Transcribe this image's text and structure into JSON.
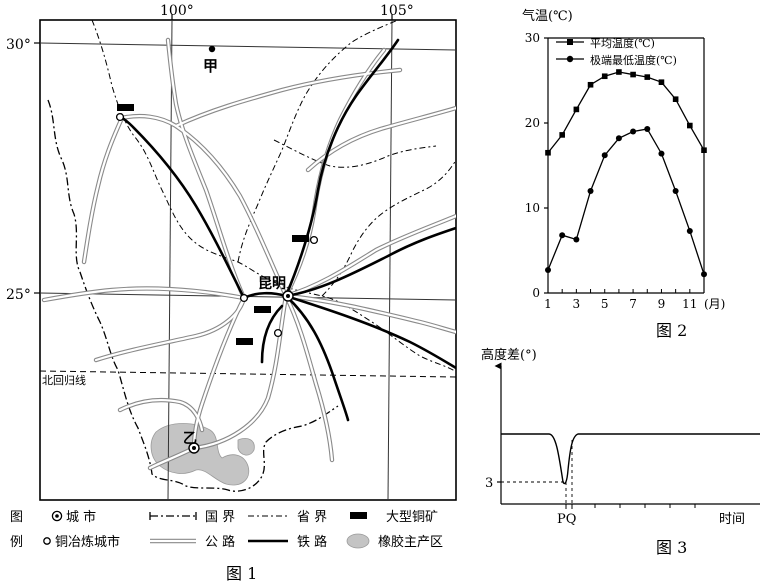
{
  "fig1": {
    "caption": "图 1",
    "lon_labels": [
      "100°",
      "105°"
    ],
    "lat_labels": [
      "30°",
      "25°"
    ],
    "tropic_label": "北回归线",
    "cities": {
      "jia": "甲",
      "kunming": "昆明",
      "yi": "乙"
    },
    "legend": {
      "row_label_1": "图",
      "row_label_2": "例",
      "city": "城 市",
      "copper_city": "铜冶炼城市",
      "national_border": "国 界",
      "provincial_border": "省 界",
      "road": "公 路",
      "railway": "铁 路",
      "copper_mine": "大型铜矿",
      "rubber_area": "橡胶主产区"
    }
  },
  "fig2": {
    "caption": "图 2",
    "ylabel": "气温(℃)",
    "xunit": "(月)",
    "chart_data": {
      "type": "line",
      "x": [
        1,
        2,
        3,
        4,
        5,
        6,
        7,
        8,
        9,
        10,
        11,
        12
      ],
      "xticks": [
        "1",
        "3",
        "5",
        "7",
        "9",
        "11"
      ],
      "yticks": [
        "0",
        "10",
        "20",
        "30"
      ],
      "ylim": [
        0,
        30
      ],
      "series": [
        {
          "name": "平均温度(℃)",
          "marker": "square",
          "values": [
            16.5,
            18.6,
            21.6,
            24.5,
            25.5,
            26.0,
            25.7,
            25.4,
            24.8,
            22.8,
            19.7,
            16.8
          ]
        },
        {
          "name": "极端最低温度(℃)",
          "marker": "circle",
          "values": [
            2.7,
            6.8,
            6.3,
            12.0,
            16.2,
            18.2,
            19.0,
            19.3,
            16.4,
            12.0,
            7.3,
            2.2
          ]
        }
      ]
    }
  },
  "fig3": {
    "caption": "图 3",
    "ylabel": "高度差(°)",
    "ytick": "3",
    "xticks": [
      "PQ"
    ],
    "xlabel": "时间"
  }
}
